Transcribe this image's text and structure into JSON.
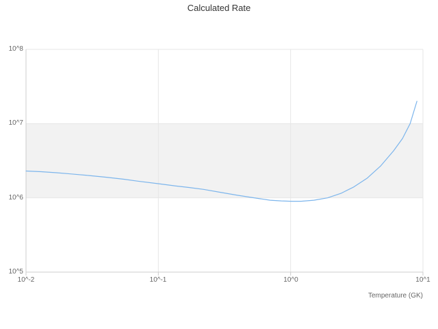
{
  "chart_data": {
    "type": "line",
    "title": "Calculated Rate",
    "xlabel": "Temperature (GK)",
    "ylabel": "",
    "xscale": "log",
    "yscale": "log",
    "xlim": [
      0.01,
      10
    ],
    "ylim": [
      100000,
      100000000
    ],
    "xticks": [
      0.01,
      0.1,
      1,
      10
    ],
    "yticks": [
      100000,
      1000000,
      10000000,
      100000000
    ],
    "xtick_labels": [
      "10^-2",
      "10^-1",
      "10^0",
      "10^1"
    ],
    "ytick_labels": [
      "10^5",
      "10^6",
      "10^7",
      "10^8"
    ],
    "grid": true,
    "legend": false,
    "band": {
      "from": 1000000,
      "to": 10000000,
      "color": "#f2f2f2"
    },
    "colors": {
      "grid": "#e6e6e6",
      "axis": "#cccccc",
      "tick_text": "#666666",
      "title_text": "#333333"
    },
    "series": [
      {
        "name": "Calculated Rate",
        "color": "#7cb5ec",
        "x": [
          0.01,
          0.013,
          0.017,
          0.022,
          0.03,
          0.04,
          0.055,
          0.07,
          0.1,
          0.13,
          0.17,
          0.22,
          0.3,
          0.4,
          0.55,
          0.7,
          0.85,
          1.0,
          1.2,
          1.5,
          1.9,
          2.4,
          3.0,
          3.8,
          4.8,
          6.0,
          7.0,
          8.0,
          9.0
        ],
        "y": [
          2300000,
          2250000,
          2180000,
          2100000,
          2000000,
          1900000,
          1780000,
          1680000,
          1550000,
          1460000,
          1380000,
          1300000,
          1180000,
          1080000,
          990000,
          930000,
          910000,
          900000,
          900000,
          930000,
          1000000,
          1150000,
          1400000,
          1850000,
          2700000,
          4300000,
          6300000,
          10000000,
          20000000
        ]
      }
    ]
  }
}
